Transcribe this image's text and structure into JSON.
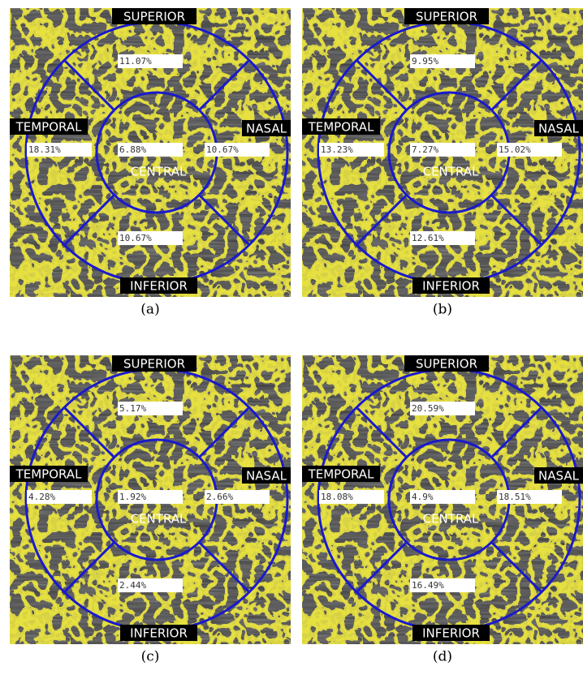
{
  "panels": [
    {
      "caption": "(a)",
      "labels": {
        "superior": "SUPERIOR",
        "temporal": "TEMPORAL",
        "nasal": "NASAL",
        "inferior": "INFERIOR",
        "central": "CENTRAL"
      },
      "values": {
        "superior": "11.07%",
        "temporal": "18.31%",
        "central": "6.88%",
        "nasal": "10.67%",
        "inferior": "10.67%"
      }
    },
    {
      "caption": "(b)",
      "labels": {
        "superior": "SUPERIOR",
        "temporal": "TEMPORAL",
        "nasal": "NASAL",
        "inferior": "INFERIOR",
        "central": "CENTRAL"
      },
      "values": {
        "superior": "9.95%",
        "temporal": "13.23%",
        "central": "7.27%",
        "nasal": "15.02%",
        "inferior": "12.61%"
      }
    },
    {
      "caption": "(c)",
      "labels": {
        "superior": "SUPERIOR",
        "temporal": "TEMPORAL",
        "nasal": "NASAL",
        "inferior": "INFERIOR",
        "central": "CENTRAL"
      },
      "values": {
        "superior": "5.17%",
        "temporal": "4.28%",
        "central": "1.92%",
        "nasal": "2.66%",
        "inferior": "2.44%"
      }
    },
    {
      "caption": "(d)",
      "labels": {
        "superior": "SUPERIOR",
        "temporal": "TEMPORAL",
        "nasal": "NASAL",
        "inferior": "INFERIOR",
        "central": "CENTRAL"
      },
      "values": {
        "superior": "20.59%",
        "temporal": "18.08%",
        "central": "4.9%",
        "nasal": "18.51%",
        "inferior": "16.49%"
      }
    }
  ]
}
